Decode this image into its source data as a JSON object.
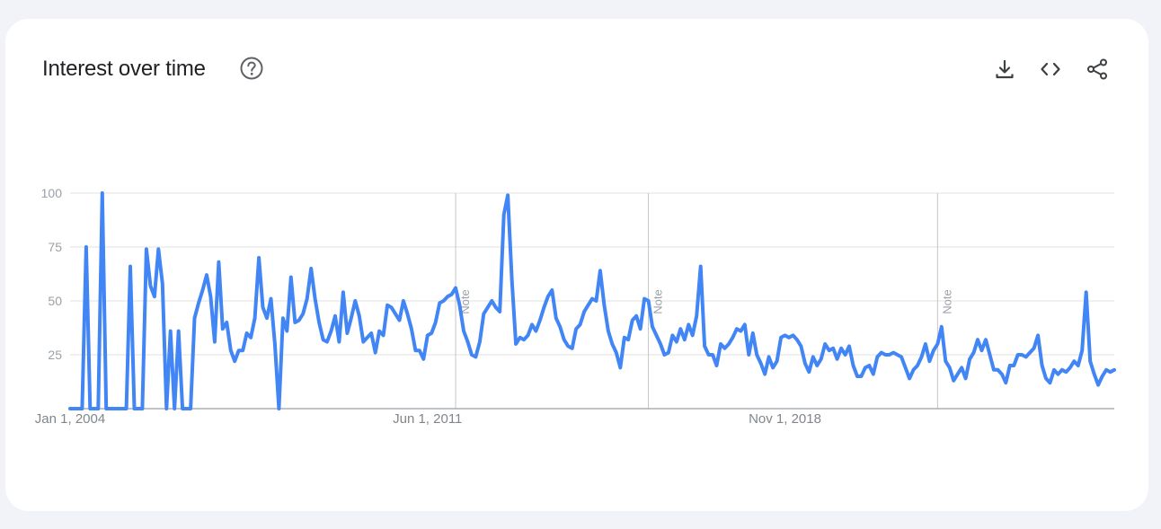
{
  "card": {
    "title": "Interest over time",
    "help_icon": "help-circle-icon",
    "toolbar": [
      {
        "name": "download-icon"
      },
      {
        "name": "embed-code-icon"
      },
      {
        "name": "share-icon"
      }
    ]
  },
  "colors": {
    "line": "#4285f4",
    "grid": "#e0e0e0",
    "axis": "#9aa0a6",
    "text": "#202124",
    "background": "#f1f3f8",
    "card": "#ffffff"
  },
  "chart_data": {
    "type": "line",
    "title": "Interest over time",
    "ylim": [
      0,
      100
    ],
    "y_ticks": [
      25,
      50,
      75,
      100
    ],
    "x_tick_labels": [
      "Jan 1, 2004",
      "Jun 1, 2011",
      "Nov 1, 2018"
    ],
    "x_start": "Jan 1, 2004",
    "frequency": "monthly",
    "notes": [
      {
        "label": "Note",
        "month": "Jan 2012"
      },
      {
        "label": "Note",
        "month": "Jan 2016"
      },
      {
        "label": "Note",
        "month": "Jan 2022"
      }
    ],
    "grid": true,
    "series": [
      {
        "values": [
          0,
          0,
          0,
          0,
          75,
          0,
          0,
          0,
          100,
          0,
          0,
          0,
          0,
          0,
          0,
          66,
          0,
          0,
          0,
          74,
          57,
          52,
          74,
          58,
          0,
          36,
          0,
          36,
          0,
          0,
          0,
          42,
          49,
          55,
          62,
          52,
          31,
          68,
          37,
          40,
          27,
          22,
          27,
          27,
          35,
          33,
          42,
          70,
          47,
          42,
          51,
          30,
          0,
          42,
          36,
          61,
          40,
          41,
          44,
          51,
          65,
          51,
          40,
          32,
          31,
          36,
          43,
          31,
          54,
          35,
          42,
          50,
          43,
          31,
          33,
          35,
          26,
          36,
          34,
          48,
          47,
          44,
          41,
          50,
          44,
          37,
          27,
          27,
          23,
          34,
          35,
          40,
          49,
          50,
          52,
          53,
          56,
          48,
          36,
          31,
          25,
          24,
          31,
          44,
          47,
          50,
          47,
          45,
          90,
          99,
          60,
          30,
          33,
          32,
          34,
          39,
          36,
          41,
          47,
          52,
          55,
          42,
          38,
          32,
          29,
          28,
          37,
          39,
          45,
          48,
          51,
          50,
          64,
          48,
          36,
          30,
          26,
          19,
          33,
          32,
          41,
          43,
          37,
          51,
          50,
          38,
          34,
          30,
          25,
          26,
          34,
          31,
          37,
          32,
          39,
          34,
          43,
          66,
          29,
          25,
          25,
          20,
          30,
          28,
          30,
          33,
          37,
          36,
          39,
          25,
          35,
          25,
          21,
          16,
          24,
          19,
          22,
          33,
          34,
          33,
          34,
          32,
          29,
          21,
          17,
          24,
          20,
          23,
          30,
          27,
          28,
          23,
          28,
          25,
          29,
          20,
          15,
          15,
          19,
          20,
          16,
          24,
          26,
          25,
          25,
          26,
          25,
          24,
          19,
          14,
          18,
          20,
          24,
          30,
          22,
          27,
          30,
          38,
          22,
          19,
          13,
          16,
          19,
          14,
          23,
          26,
          32,
          27,
          32,
          25,
          18,
          18,
          16,
          12,
          20,
          20,
          25,
          25,
          24,
          26,
          28,
          34,
          20,
          14,
          12,
          18,
          16,
          18,
          17,
          19,
          22,
          20,
          27,
          54,
          22,
          16,
          11,
          15,
          18,
          17,
          18
        ]
      }
    ]
  }
}
